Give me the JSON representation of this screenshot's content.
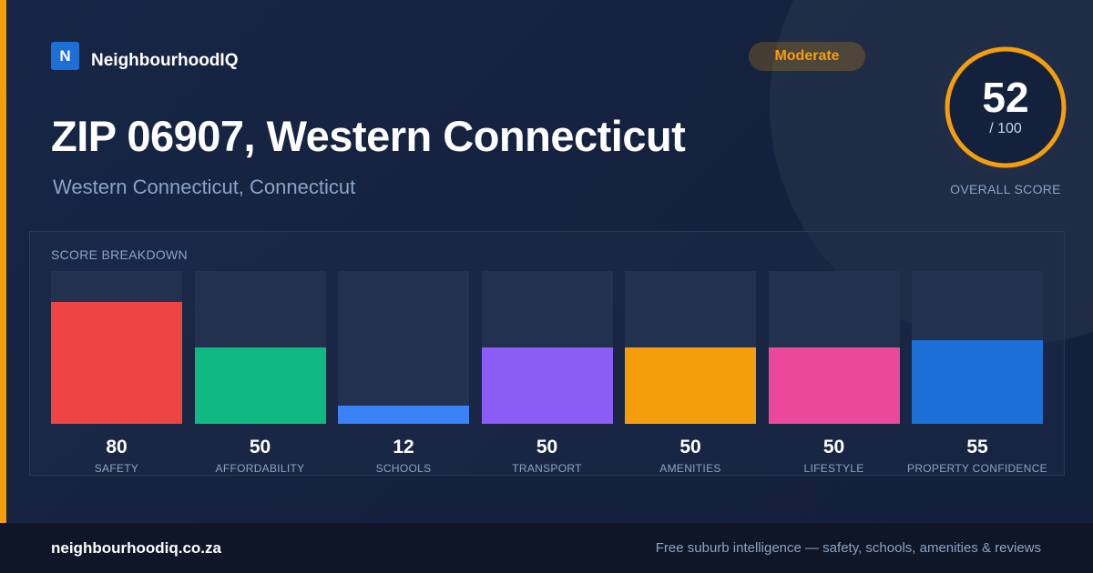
{
  "brand": {
    "logo_letter": "N",
    "name": "NeighbourhoodIQ",
    "accent_color": "#f59e0b",
    "logo_color": "#1d6fd8"
  },
  "badge": {
    "label": "Moderate",
    "color": "#f59e0b"
  },
  "header": {
    "title": "ZIP 06907, Western Connecticut",
    "subtitle": "Western Connecticut, Connecticut"
  },
  "overall": {
    "score": "52",
    "max_text": "/ 100",
    "score_fraction": 0.52,
    "label": "OVERALL SCORE",
    "ring_color": "#f59e0b"
  },
  "breakdown": {
    "title": "SCORE BREAKDOWN",
    "items": [
      {
        "label": "SAFETY",
        "value": 80,
        "color": "#ef4444"
      },
      {
        "label": "AFFORDABILITY",
        "value": 50,
        "color": "#10b981"
      },
      {
        "label": "SCHOOLS",
        "value": 12,
        "color": "#3b82f6"
      },
      {
        "label": "TRANSPORT",
        "value": 50,
        "color": "#8b5cf6"
      },
      {
        "label": "AMENITIES",
        "value": 50,
        "color": "#f59e0b"
      },
      {
        "label": "LIFESTYLE",
        "value": 50,
        "color": "#ec4899"
      },
      {
        "label": "PROPERTY CONFIDENCE",
        "value": 55,
        "color": "#1d6fd8"
      }
    ]
  },
  "footer": {
    "site": "neighbourhoodiq.co.za",
    "tagline": "Free suburb intelligence — safety, schools, amenities & reviews"
  }
}
